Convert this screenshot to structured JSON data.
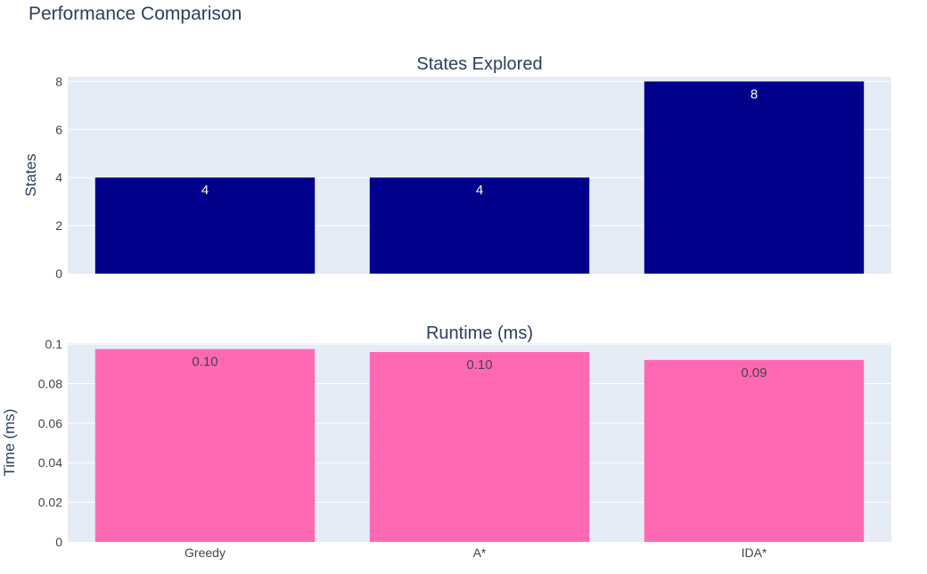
{
  "page_title": "Performance Comparison",
  "chart_data": [
    {
      "type": "bar",
      "title": "States Explored",
      "xlabel": "",
      "ylabel": "States",
      "categories": [
        "Greedy",
        "A*",
        "IDA*"
      ],
      "values": [
        4,
        4,
        8
      ],
      "data_labels": [
        "4",
        "4",
        "8"
      ],
      "ylim": [
        0,
        8.2
      ],
      "y_ticks": [
        0,
        2,
        4,
        6,
        8
      ],
      "y_tick_labels": [
        "0",
        "2",
        "4",
        "6",
        "8"
      ],
      "show_x_tick_labels": false,
      "grid": true,
      "bar_color": "#00008b",
      "label_color": "#ffffff"
    },
    {
      "type": "bar",
      "title": "Runtime (ms)",
      "xlabel": "",
      "ylabel": "Time (ms)",
      "categories": [
        "Greedy",
        "A*",
        "IDA*"
      ],
      "values": [
        0.0975,
        0.096,
        0.092
      ],
      "data_labels": [
        "0.10",
        "0.10",
        "0.09"
      ],
      "ylim": [
        0,
        0.1005
      ],
      "y_ticks": [
        0,
        0.02,
        0.04,
        0.06,
        0.08,
        0.1
      ],
      "y_tick_labels": [
        "0",
        "0.02",
        "0.04",
        "0.06",
        "0.08",
        "0.1"
      ],
      "show_x_tick_labels": true,
      "grid": true,
      "bar_color": "#ff69b4",
      "label_color": "#444444"
    }
  ],
  "colors": {
    "plot_background": "#e5ecf6",
    "grid": "#ffffff",
    "text": "#2a3f5f",
    "tick_text": "#444444"
  }
}
